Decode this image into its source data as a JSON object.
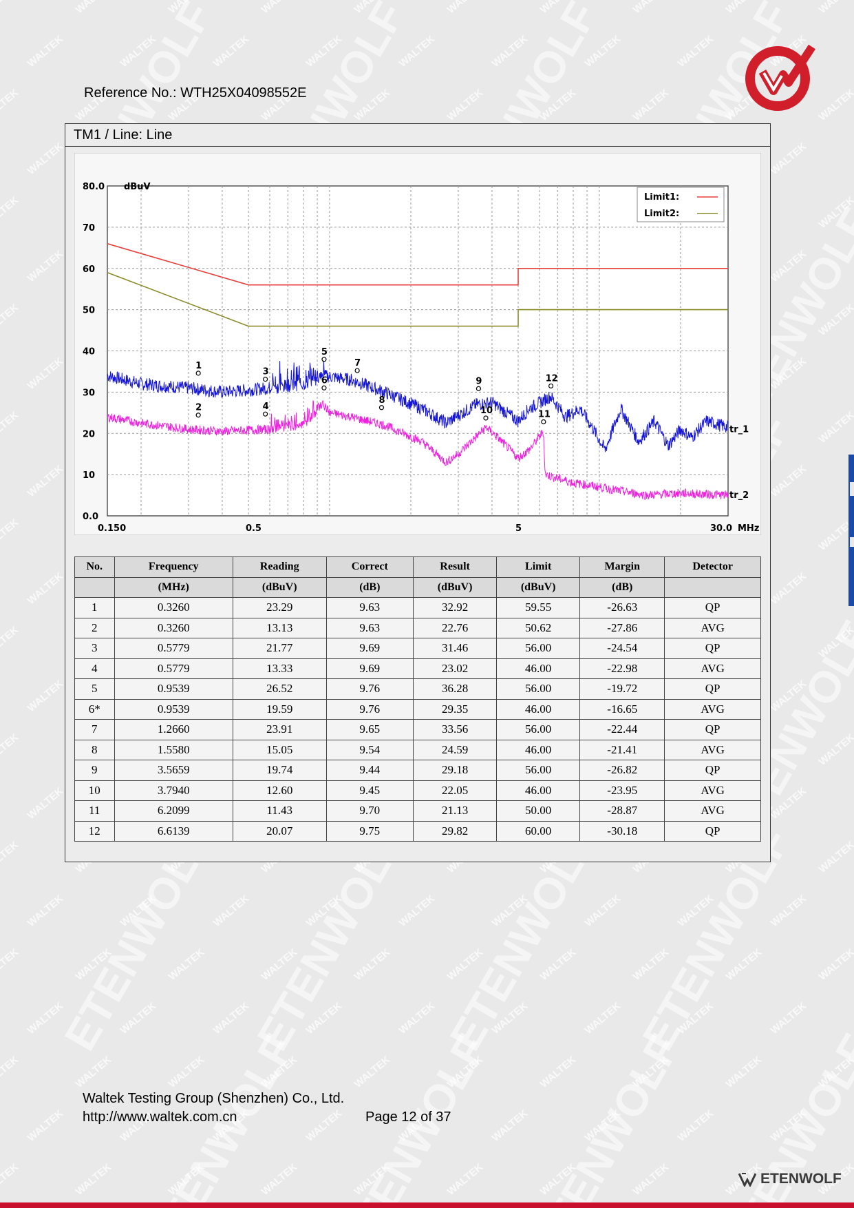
{
  "header": {
    "reference": "Reference No.: WTH25X04098552E"
  },
  "section": {
    "title": "TM1 / Line: Line"
  },
  "chart_data": {
    "type": "line",
    "xscale": "log",
    "xlim": [
      0.15,
      30.0
    ],
    "ylim": [
      0,
      80
    ],
    "y_unit_label": "dBuV",
    "x_unit_label": "MHz",
    "y_ticks": [
      "80.0",
      "70",
      "60",
      "50",
      "40",
      "30",
      "20",
      "10",
      "0.0"
    ],
    "x_ticks": [
      "0.150",
      "0.5",
      "5",
      "30.0"
    ],
    "legend": [
      "Limit1:",
      "Limit2:"
    ],
    "legend_position": "top-right",
    "grid": true,
    "colors": {
      "limit1": "#e8413c",
      "limit2": "#8a8a2a",
      "trace1": "#1515d8",
      "trace2": "#ee22dd"
    },
    "limit1": [
      [
        0.15,
        66
      ],
      [
        0.5,
        56
      ],
      [
        5,
        56
      ],
      [
        5,
        60
      ],
      [
        30,
        60
      ]
    ],
    "limit2": [
      [
        0.15,
        59
      ],
      [
        0.5,
        46
      ],
      [
        5,
        46
      ],
      [
        5,
        50
      ],
      [
        30,
        50
      ]
    ],
    "trace_labels": [
      "tr_1",
      "tr_2"
    ],
    "trace1_approx": [
      [
        0.15,
        34
      ],
      [
        0.2,
        32
      ],
      [
        0.3,
        31
      ],
      [
        0.4,
        30
      ],
      [
        0.5,
        30.5
      ],
      [
        0.6,
        31
      ],
      [
        0.8,
        32
      ],
      [
        0.95,
        34
      ],
      [
        1.2,
        33
      ],
      [
        1.6,
        30
      ],
      [
        2.2,
        26
      ],
      [
        2.7,
        22.5
      ],
      [
        3.5,
        27
      ],
      [
        4.0,
        27.5
      ],
      [
        5.0,
        23
      ],
      [
        5.5,
        26
      ],
      [
        6.6,
        29
      ],
      [
        7.5,
        24
      ],
      [
        8.5,
        26
      ],
      [
        9.5,
        21
      ],
      [
        10.5,
        16
      ],
      [
        12,
        26
      ],
      [
        14,
        18
      ],
      [
        16,
        23
      ],
      [
        18,
        17
      ],
      [
        20,
        21
      ],
      [
        22,
        19
      ],
      [
        25,
        23
      ],
      [
        28,
        22
      ],
      [
        30,
        21.5
      ]
    ],
    "trace2_approx": [
      [
        0.15,
        24
      ],
      [
        0.2,
        22.5
      ],
      [
        0.3,
        21
      ],
      [
        0.4,
        20.5
      ],
      [
        0.6,
        21
      ],
      [
        0.8,
        22
      ],
      [
        0.95,
        27
      ],
      [
        1.0,
        25
      ],
      [
        1.2,
        24
      ],
      [
        1.6,
        22
      ],
      [
        2.2,
        18
      ],
      [
        2.7,
        13
      ],
      [
        3.0,
        15
      ],
      [
        3.8,
        21.5
      ],
      [
        4.2,
        19
      ],
      [
        5.0,
        14
      ],
      [
        5.5,
        16
      ],
      [
        6.2,
        20.5
      ],
      [
        6.3,
        10
      ],
      [
        8,
        8
      ],
      [
        10,
        7
      ],
      [
        12,
        6
      ],
      [
        15,
        5
      ],
      [
        20,
        5.5
      ],
      [
        30,
        5
      ]
    ],
    "markers": [
      {
        "n": "1",
        "f": 0.326,
        "v": 32.92
      },
      {
        "n": "2",
        "f": 0.326,
        "v": 22.76
      },
      {
        "n": "3",
        "f": 0.5779,
        "v": 31.46
      },
      {
        "n": "4",
        "f": 0.5779,
        "v": 23.02
      },
      {
        "n": "5",
        "f": 0.9539,
        "v": 36.28
      },
      {
        "n": "6",
        "f": 0.9539,
        "v": 29.35
      },
      {
        "n": "7",
        "f": 1.266,
        "v": 33.56
      },
      {
        "n": "8",
        "f": 1.558,
        "v": 24.59
      },
      {
        "n": "9",
        "f": 3.5659,
        "v": 29.18
      },
      {
        "n": "10",
        "f": 3.794,
        "v": 22.05
      },
      {
        "n": "11",
        "f": 6.2099,
        "v": 21.13
      },
      {
        "n": "12",
        "f": 6.6139,
        "v": 29.82
      }
    ]
  },
  "table": {
    "headers": [
      "No.",
      "Frequency",
      "Reading",
      "Correct",
      "Result",
      "Limit",
      "Margin",
      "Detector"
    ],
    "units": [
      "",
      "(MHz)",
      "(dBuV)",
      "(dB)",
      "(dBuV)",
      "(dBuV)",
      "(dB)",
      ""
    ],
    "rows": [
      [
        "1",
        "0.3260",
        "23.29",
        "9.63",
        "32.92",
        "59.55",
        "-26.63",
        "QP"
      ],
      [
        "2",
        "0.3260",
        "13.13",
        "9.63",
        "22.76",
        "50.62",
        "-27.86",
        "AVG"
      ],
      [
        "3",
        "0.5779",
        "21.77",
        "9.69",
        "31.46",
        "56.00",
        "-24.54",
        "QP"
      ],
      [
        "4",
        "0.5779",
        "13.33",
        "9.69",
        "23.02",
        "46.00",
        "-22.98",
        "AVG"
      ],
      [
        "5",
        "0.9539",
        "26.52",
        "9.76",
        "36.28",
        "56.00",
        "-19.72",
        "QP"
      ],
      [
        "6*",
        "0.9539",
        "19.59",
        "9.76",
        "29.35",
        "46.00",
        "-16.65",
        "AVG"
      ],
      [
        "7",
        "1.2660",
        "23.91",
        "9.65",
        "33.56",
        "56.00",
        "-22.44",
        "QP"
      ],
      [
        "8",
        "1.5580",
        "15.05",
        "9.54",
        "24.59",
        "46.00",
        "-21.41",
        "AVG"
      ],
      [
        "9",
        "3.5659",
        "19.74",
        "9.44",
        "29.18",
        "56.00",
        "-26.82",
        "QP"
      ],
      [
        "10",
        "3.7940",
        "12.60",
        "9.45",
        "22.05",
        "46.00",
        "-23.95",
        "AVG"
      ],
      [
        "11",
        "6.2099",
        "11.43",
        "9.70",
        "21.13",
        "50.00",
        "-28.87",
        "AVG"
      ],
      [
        "12",
        "6.6139",
        "20.07",
        "9.75",
        "29.82",
        "60.00",
        "-30.18",
        "QP"
      ]
    ]
  },
  "footer": {
    "company": "Waltek Testing Group (Shenzhen) Co., Ltd.",
    "url": "http://www.waltek.com.cn",
    "page": "Page 12 of 37",
    "brand": "ETENWOLF",
    "watermarks": [
      "WALTEK",
      "ETENWOLF"
    ]
  }
}
